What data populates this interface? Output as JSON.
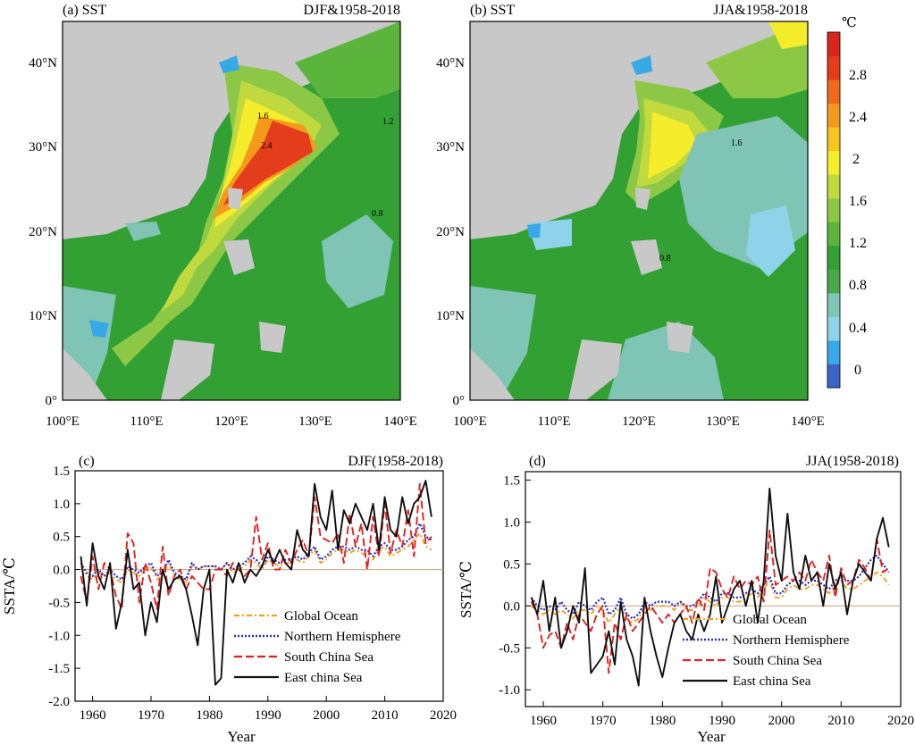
{
  "maps": [
    {
      "label": "(a) SST",
      "season": "DJF&1958-2018",
      "contours": [
        "1.6",
        "2.4",
        "1.2",
        "0.8"
      ]
    },
    {
      "label": "(b) SST",
      "season": "JJA&1958-2018",
      "contours": [
        "1.6",
        "0.8"
      ]
    }
  ],
  "map_axes": {
    "lat_ticks": [
      "0°",
      "10°N",
      "20°N",
      "30°N",
      "40°N"
    ],
    "lon_ticks": [
      "100°E",
      "110°E",
      "120°E",
      "130°E",
      "140°E"
    ]
  },
  "colorbar": {
    "unit": "℃",
    "labels": [
      "2.8",
      "2.4",
      "2",
      "1.6",
      "1.2",
      "0.8",
      "0.4",
      "0"
    ],
    "colors": [
      "#3c63c8",
      "#37a9e6",
      "#8fd3ea",
      "#7fc4b4",
      "#4aa84a",
      "#32a032",
      "#5bb53c",
      "#8cc845",
      "#bfd93e",
      "#f5ec2c",
      "#f7c51e",
      "#f39a1c",
      "#ee6b1b",
      "#e33d1b",
      "#d8261f"
    ]
  },
  "colors": {
    "land": "#c8c8c8",
    "global": "#f0a020",
    "nh": "#2a2ac8",
    "scs": "#e02020",
    "ecs": "#101010"
  },
  "chart_data": [
    {
      "type": "line",
      "panel": "(c)",
      "title": "DJF(1958-2018)",
      "xlabel": "Year",
      "ylabel": "SSTA/℃",
      "xlim": [
        1957,
        2020
      ],
      "ylim": [
        -2.0,
        1.5
      ],
      "xticks": [
        1960,
        1970,
        1980,
        1990,
        2000,
        2010,
        2020
      ],
      "yticks": [
        -2.0,
        -1.5,
        -1.0,
        -0.5,
        0.0,
        0.5,
        1.0,
        1.5
      ],
      "x": [
        1958,
        1959,
        1960,
        1961,
        1962,
        1963,
        1964,
        1965,
        1966,
        1967,
        1968,
        1969,
        1970,
        1971,
        1972,
        1973,
        1974,
        1975,
        1976,
        1977,
        1978,
        1979,
        1980,
        1981,
        1982,
        1983,
        1984,
        1985,
        1986,
        1987,
        1988,
        1989,
        1990,
        1991,
        1992,
        1993,
        1994,
        1995,
        1996,
        1997,
        1998,
        1999,
        2000,
        2001,
        2002,
        2003,
        2004,
        2005,
        2006,
        2007,
        2008,
        2009,
        2010,
        2011,
        2012,
        2013,
        2014,
        2015,
        2016,
        2017,
        2018
      ],
      "legend_position": "bottom-center",
      "series": [
        {
          "name": "Global Ocean",
          "color": "#f0a020",
          "style": "dashdot",
          "values": [
            0.05,
            -0.1,
            -0.15,
            -0.05,
            -0.1,
            -0.05,
            -0.15,
            -0.2,
            0.0,
            -0.05,
            -0.1,
            0.0,
            0.05,
            -0.15,
            -0.1,
            0.1,
            -0.1,
            -0.15,
            -0.2,
            0.05,
            0.0,
            0.05,
            0.05,
            0.05,
            0.0,
            0.1,
            -0.05,
            0.0,
            0.05,
            0.15,
            0.1,
            0.0,
            0.15,
            0.1,
            0.05,
            0.1,
            0.1,
            0.15,
            0.1,
            0.2,
            0.3,
            0.1,
            0.15,
            0.25,
            0.3,
            0.3,
            0.25,
            0.3,
            0.25,
            0.2,
            0.15,
            0.3,
            0.35,
            0.2,
            0.25,
            0.3,
            0.35,
            0.45,
            0.55,
            0.35,
            0.3
          ]
        },
        {
          "name": "Northern Hemisphere",
          "color": "#2a2ac8",
          "style": "dotted",
          "values": [
            0.1,
            -0.05,
            -0.1,
            0.0,
            -0.1,
            0.0,
            -0.1,
            -0.15,
            0.05,
            0.0,
            -0.05,
            0.05,
            0.1,
            -0.1,
            -0.05,
            0.15,
            -0.05,
            -0.1,
            -0.15,
            0.1,
            0.0,
            0.05,
            0.05,
            0.05,
            0.0,
            0.1,
            0.0,
            0.05,
            0.1,
            0.2,
            0.15,
            0.05,
            0.2,
            0.15,
            0.1,
            0.15,
            0.15,
            0.2,
            0.15,
            0.25,
            0.35,
            0.15,
            0.2,
            0.3,
            0.35,
            0.35,
            0.3,
            0.35,
            0.3,
            0.3,
            0.2,
            0.35,
            0.4,
            0.3,
            0.3,
            0.35,
            0.45,
            0.5,
            0.7,
            0.5,
            0.45
          ]
        },
        {
          "name": "South China Sea",
          "color": "#e02020",
          "style": "dashed",
          "values": [
            -0.1,
            -0.5,
            0.2,
            -0.3,
            0.1,
            0.0,
            -0.4,
            -0.6,
            0.55,
            0.4,
            -0.5,
            0.1,
            -0.2,
            -0.6,
            0.35,
            -0.4,
            -0.1,
            0.0,
            -0.3,
            -0.1,
            -0.2,
            -0.3,
            -0.3,
            0.0,
            0.0,
            -0.1,
            0.1,
            0.0,
            -0.1,
            0.0,
            0.8,
            0.15,
            0.4,
            0.0,
            0.0,
            0.3,
            0.1,
            0.3,
            0.45,
            0.2,
            1.1,
            0.5,
            0.45,
            0.4,
            0.55,
            0.1,
            0.85,
            0.35,
            0.7,
            0.0,
            0.8,
            0.2,
            1.0,
            0.25,
            0.6,
            0.35,
            0.9,
            0.2,
            1.3,
            0.4,
            0.5
          ]
        },
        {
          "name": "East china Sea",
          "color": "#101010",
          "style": "solid",
          "values": [
            0.2,
            -0.55,
            0.4,
            -0.1,
            -0.3,
            0.1,
            -0.9,
            -0.5,
            0.3,
            -0.3,
            -0.2,
            -1.0,
            -0.5,
            -0.8,
            0.0,
            -0.3,
            -0.15,
            -0.1,
            -0.3,
            -0.7,
            -1.15,
            -0.3,
            0.0,
            -1.75,
            -1.65,
            0.0,
            -0.2,
            0.1,
            -0.2,
            0.0,
            -0.1,
            0.05,
            0.3,
            0.1,
            0.3,
            0.1,
            0.0,
            0.6,
            0.3,
            0.2,
            1.3,
            0.8,
            0.6,
            1.2,
            0.3,
            0.9,
            0.7,
            1.0,
            0.8,
            0.6,
            1.0,
            0.3,
            1.1,
            0.6,
            0.5,
            1.1,
            0.7,
            1.0,
            1.1,
            1.35,
            0.8
          ]
        }
      ]
    },
    {
      "type": "line",
      "panel": "(d)",
      "title": "JJA(1958-2018)",
      "xlabel": "Year",
      "ylabel": "SSTA/℃",
      "xlim": [
        1957,
        2020
      ],
      "ylim": [
        -1.2,
        1.6
      ],
      "xticks": [
        1960,
        1970,
        1980,
        1990,
        2000,
        2010,
        2020
      ],
      "yticks": [
        -1.0,
        -0.5,
        0.0,
        0.5,
        1.0,
        1.5
      ],
      "x": [
        1958,
        1959,
        1960,
        1961,
        1962,
        1963,
        1964,
        1965,
        1966,
        1967,
        1968,
        1969,
        1970,
        1971,
        1972,
        1973,
        1974,
        1975,
        1976,
        1977,
        1978,
        1979,
        1980,
        1981,
        1982,
        1983,
        1984,
        1985,
        1986,
        1987,
        1988,
        1989,
        1990,
        1991,
        1992,
        1993,
        1994,
        1995,
        1996,
        1997,
        1998,
        1999,
        2000,
        2001,
        2002,
        2003,
        2004,
        2005,
        2006,
        2007,
        2008,
        2009,
        2010,
        2011,
        2012,
        2013,
        2014,
        2015,
        2016,
        2017,
        2018
      ],
      "legend_position": "bottom-right",
      "series": [
        {
          "name": "Global Ocean",
          "color": "#f0a020",
          "style": "dashdot",
          "values": [
            0.0,
            -0.05,
            -0.1,
            -0.05,
            -0.1,
            -0.05,
            -0.1,
            -0.15,
            -0.05,
            -0.05,
            -0.1,
            0.0,
            -0.05,
            -0.2,
            -0.1,
            0.0,
            -0.15,
            -0.2,
            -0.15,
            0.0,
            -0.05,
            0.0,
            0.0,
            0.0,
            -0.05,
            0.05,
            -0.05,
            -0.05,
            0.0,
            0.1,
            0.05,
            0.0,
            0.1,
            0.1,
            0.05,
            0.05,
            0.1,
            0.15,
            0.1,
            0.2,
            0.3,
            0.1,
            0.1,
            0.2,
            0.25,
            0.2,
            0.2,
            0.25,
            0.25,
            0.2,
            0.15,
            0.25,
            0.3,
            0.2,
            0.2,
            0.25,
            0.3,
            0.35,
            0.4,
            0.35,
            0.25
          ]
        },
        {
          "name": "Northern Hemisphere",
          "color": "#2a2ac8",
          "style": "dotted",
          "values": [
            0.1,
            0.0,
            -0.05,
            0.0,
            -0.05,
            0.05,
            -0.05,
            -0.1,
            0.05,
            0.0,
            -0.05,
            0.05,
            0.1,
            -0.1,
            -0.05,
            0.1,
            -0.1,
            -0.15,
            -0.1,
            0.05,
            0.0,
            0.05,
            0.05,
            0.05,
            0.0,
            0.05,
            0.0,
            0.0,
            0.05,
            0.15,
            0.1,
            0.05,
            0.15,
            0.15,
            0.1,
            0.1,
            0.15,
            0.2,
            0.15,
            0.25,
            0.35,
            0.15,
            0.15,
            0.25,
            0.3,
            0.3,
            0.25,
            0.3,
            0.3,
            0.25,
            0.2,
            0.3,
            0.35,
            0.3,
            0.3,
            0.35,
            0.45,
            0.55,
            0.6,
            0.5,
            0.4
          ]
        },
        {
          "name": "South China Sea",
          "color": "#e02020",
          "style": "dashed",
          "values": [
            0.05,
            -0.1,
            -0.5,
            -0.35,
            -0.3,
            -0.5,
            -0.2,
            -0.4,
            -0.1,
            -0.2,
            -0.3,
            -0.1,
            0.0,
            -0.8,
            -0.2,
            -0.4,
            -0.1,
            -0.3,
            -0.2,
            -0.1,
            0.0,
            -0.1,
            -0.2,
            -0.1,
            -0.2,
            -0.1,
            0.0,
            -0.2,
            0.1,
            -0.05,
            0.45,
            0.4,
            0.2,
            0.1,
            0.35,
            0.2,
            0.3,
            0.25,
            0.35,
            0.05,
            0.9,
            0.25,
            0.3,
            0.35,
            0.3,
            0.4,
            0.3,
            0.55,
            0.4,
            0.3,
            0.6,
            0.1,
            0.45,
            0.25,
            0.3,
            0.55,
            0.45,
            0.3,
            0.8,
            0.4,
            0.45
          ]
        },
        {
          "name": "East china Sea",
          "color": "#101010",
          "style": "solid",
          "values": [
            0.1,
            -0.1,
            0.3,
            -0.3,
            0.1,
            -0.5,
            -0.3,
            0.0,
            -0.2,
            0.45,
            -0.8,
            -0.7,
            -0.6,
            -0.3,
            -0.7,
            0.05,
            -0.4,
            -0.6,
            -0.95,
            0.1,
            -0.3,
            -0.6,
            -0.85,
            -0.5,
            -0.2,
            -0.1,
            -0.3,
            -0.4,
            -0.1,
            -0.3,
            -0.1,
            0.35,
            -0.2,
            0.0,
            0.2,
            0.3,
            0.0,
            0.3,
            -0.2,
            0.3,
            1.4,
            0.6,
            0.3,
            1.1,
            0.4,
            0.2,
            0.6,
            0.3,
            0.4,
            0.0,
            0.5,
            0.2,
            0.4,
            -0.1,
            0.3,
            0.5,
            0.4,
            0.3,
            0.8,
            1.05,
            0.7
          ]
        }
      ]
    }
  ]
}
